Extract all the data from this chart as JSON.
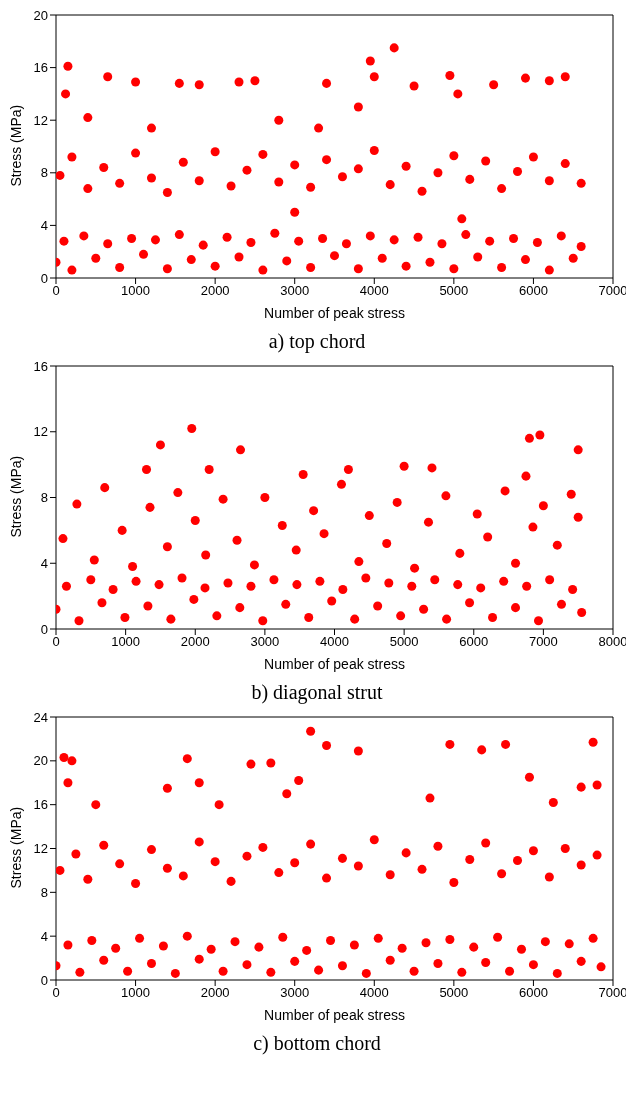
{
  "chart_data": [
    {
      "type": "scatter",
      "title": "a) top chord",
      "xlabel": "Number of peak stress",
      "ylabel": "Stress (MPa)",
      "xlim": [
        0,
        7000
      ],
      "xticks": [
        0,
        1000,
        2000,
        3000,
        4000,
        5000,
        6000,
        7000
      ],
      "ylim": [
        0,
        20
      ],
      "yticks": [
        0,
        4,
        8,
        12,
        16,
        20
      ],
      "marker": "circle",
      "series": [
        {
          "color": "#ff0000",
          "x": [
            0,
            100,
            200,
            350,
            500,
            650,
            800,
            950,
            1100,
            1250,
            1400,
            1550,
            1700,
            1850,
            2000,
            2150,
            2300,
            2450,
            2600,
            2750,
            2900,
            3050,
            3200,
            3350,
            3500,
            3650,
            3800,
            3950,
            4100,
            4250,
            4400,
            4550,
            4700,
            4850,
            5000,
            5150,
            5300,
            5450,
            5600,
            5750,
            5900,
            6050,
            6200,
            6350,
            6500,
            6600,
            50,
            200,
            400,
            600,
            800,
            1000,
            1200,
            1400,
            1600,
            1800,
            2000,
            2200,
            2400,
            2600,
            2800,
            3000,
            3200,
            3400,
            3600,
            3800,
            4000,
            4200,
            4400,
            4600,
            4800,
            5000,
            5200,
            5400,
            5600,
            5800,
            6000,
            6200,
            6400,
            6600,
            120,
            150,
            650,
            1000,
            1550,
            1800,
            2300,
            2500,
            3300,
            3400,
            3800,
            3950,
            4000,
            4250,
            4500,
            4950,
            5050,
            5500,
            5900,
            6200,
            6400,
            1200,
            400,
            2800,
            5100,
            3000
          ],
          "values": [
            1.2,
            2.8,
            0.6,
            3.2,
            1.5,
            2.6,
            0.8,
            3.0,
            1.8,
            2.9,
            0.7,
            3.3,
            1.4,
            2.5,
            0.9,
            3.1,
            1.6,
            2.7,
            0.6,
            3.4,
            1.3,
            2.8,
            0.8,
            3.0,
            1.7,
            2.6,
            0.7,
            3.2,
            1.5,
            2.9,
            0.9,
            3.1,
            1.2,
            2.6,
            0.7,
            3.3,
            1.6,
            2.8,
            0.8,
            3.0,
            1.4,
            2.7,
            0.6,
            3.2,
            1.5,
            2.4,
            7.8,
            9.2,
            6.8,
            8.4,
            7.2,
            9.5,
            7.6,
            6.5,
            8.8,
            7.4,
            9.6,
            7.0,
            8.2,
            9.4,
            7.3,
            8.6,
            6.9,
            9.0,
            7.7,
            8.3,
            9.7,
            7.1,
            8.5,
            6.6,
            8.0,
            9.3,
            7.5,
            8.9,
            6.8,
            8.1,
            9.2,
            7.4,
            8.7,
            7.2,
            14.0,
            16.1,
            15.3,
            14.9,
            14.8,
            14.7,
            14.9,
            15.0,
            11.4,
            14.8,
            13.0,
            16.5,
            15.3,
            17.5,
            14.6,
            15.4,
            14.0,
            14.7,
            15.2,
            15.0,
            15.3,
            11.4,
            12.2,
            12.0,
            4.5,
            5.0
          ]
        }
      ]
    },
    {
      "type": "scatter",
      "title": "b) diagonal strut",
      "xlabel": "Number of peak stress",
      "ylabel": "Stress (MPa)",
      "xlim": [
        0,
        8000
      ],
      "xticks": [
        0,
        1000,
        2000,
        3000,
        4000,
        5000,
        6000,
        7000,
        8000
      ],
      "ylim": [
        0,
        16
      ],
      "yticks": [
        0,
        4,
        8,
        12,
        16
      ],
      "marker": "circle",
      "series": [
        {
          "color": "#ff0000",
          "x": [
            0,
            150,
            330,
            500,
            660,
            820,
            990,
            1150,
            1320,
            1480,
            1650,
            1810,
            1980,
            2140,
            2310,
            2470,
            2640,
            2800,
            2970,
            3130,
            3300,
            3460,
            3630,
            3790,
            3960,
            4120,
            4290,
            4450,
            4620,
            4780,
            4950,
            5110,
            5280,
            5440,
            5610,
            5770,
            5940,
            6100,
            6270,
            6430,
            6600,
            6760,
            6930,
            7090,
            7260,
            7420,
            7550,
            100,
            300,
            550,
            700,
            950,
            1100,
            1350,
            1600,
            1750,
            2000,
            2150,
            2400,
            2600,
            2850,
            3000,
            3250,
            3450,
            3700,
            3850,
            4100,
            4350,
            4500,
            4750,
            4900,
            5150,
            5350,
            5600,
            5800,
            6050,
            6200,
            6450,
            6600,
            6850,
            7000,
            7200,
            7400,
            7500,
            1300,
            1500,
            1950,
            2200,
            2650,
            3550,
            4200,
            5000,
            5400,
            6800,
            6950,
            7500,
            6750
          ],
          "values": [
            1.2,
            2.6,
            0.5,
            3.0,
            1.6,
            2.4,
            0.7,
            2.9,
            1.4,
            2.7,
            0.6,
            3.1,
            1.8,
            2.5,
            0.8,
            2.8,
            1.3,
            2.6,
            0.5,
            3.0,
            1.5,
            2.7,
            0.7,
            2.9,
            1.7,
            2.4,
            0.6,
            3.1,
            1.4,
            2.8,
            0.8,
            2.6,
            1.2,
            3.0,
            0.6,
            2.7,
            1.6,
            2.5,
            0.7,
            2.9,
            1.3,
            2.6,
            0.5,
            3.0,
            1.5,
            2.4,
            1.0,
            5.5,
            7.6,
            4.2,
            8.6,
            6.0,
            3.8,
            7.4,
            5.0,
            8.3,
            6.6,
            4.5,
            7.9,
            5.4,
            3.9,
            8.0,
            6.3,
            4.8,
            7.2,
            5.8,
            8.8,
            4.1,
            6.9,
            5.2,
            7.7,
            3.7,
            6.5,
            8.1,
            4.6,
            7.0,
            5.6,
            8.4,
            4.0,
            6.2,
            7.5,
            5.1,
            8.2,
            6.8,
            9.7,
            11.2,
            12.2,
            9.7,
            10.9,
            9.4,
            9.7,
            9.9,
            9.8,
            11.6,
            11.8,
            10.9,
            9.3
          ]
        }
      ]
    },
    {
      "type": "scatter",
      "title": "c) bottom chord",
      "xlabel": "Number of peak stress",
      "ylabel": "Stress (MPa)",
      "xlim": [
        0,
        7000
      ],
      "xticks": [
        0,
        1000,
        2000,
        3000,
        4000,
        5000,
        6000,
        7000
      ],
      "ylim": [
        0,
        24
      ],
      "yticks": [
        0,
        4,
        8,
        12,
        16,
        20,
        24
      ],
      "marker": "circle",
      "series": [
        {
          "color": "#ff0000",
          "x": [
            0,
            150,
            300,
            450,
            600,
            750,
            900,
            1050,
            1200,
            1350,
            1500,
            1650,
            1800,
            1950,
            2100,
            2250,
            2400,
            2550,
            2700,
            2850,
            3000,
            3150,
            3300,
            3450,
            3600,
            3750,
            3900,
            4050,
            4200,
            4350,
            4500,
            4650,
            4800,
            4950,
            5100,
            5250,
            5400,
            5550,
            5700,
            5850,
            6000,
            6150,
            6300,
            6450,
            6600,
            6750,
            6850,
            50,
            250,
            400,
            600,
            800,
            1000,
            1200,
            1400,
            1600,
            1800,
            2000,
            2200,
            2400,
            2600,
            2800,
            3000,
            3200,
            3400,
            3600,
            3800,
            4000,
            4200,
            4400,
            4600,
            4800,
            5000,
            5200,
            5400,
            5600,
            5800,
            6000,
            6200,
            6400,
            6600,
            6800,
            100,
            150,
            200,
            500,
            1400,
            1650,
            1800,
            2050,
            2450,
            2700,
            2900,
            3050,
            3200,
            3400,
            3800,
            4700,
            4950,
            5350,
            5650,
            5950,
            6250,
            6600,
            6750,
            6800
          ],
          "values": [
            1.3,
            3.2,
            0.7,
            3.6,
            1.8,
            2.9,
            0.8,
            3.8,
            1.5,
            3.1,
            0.6,
            4.0,
            1.9,
            2.8,
            0.8,
            3.5,
            1.4,
            3.0,
            0.7,
            3.9,
            1.7,
            2.7,
            0.9,
            3.6,
            1.3,
            3.2,
            0.6,
            3.8,
            1.8,
            2.9,
            0.8,
            3.4,
            1.5,
            3.7,
            0.7,
            3.0,
            1.6,
            3.9,
            0.8,
            2.8,
            1.4,
            3.5,
            0.6,
            3.3,
            1.7,
            3.8,
            1.2,
            10.0,
            11.5,
            9.2,
            12.3,
            10.6,
            8.8,
            11.9,
            10.2,
            9.5,
            12.6,
            10.8,
            9.0,
            11.3,
            12.1,
            9.8,
            10.7,
            12.4,
            9.3,
            11.1,
            10.4,
            12.8,
            9.6,
            11.6,
            10.1,
            12.2,
            8.9,
            11.0,
            12.5,
            9.7,
            10.9,
            11.8,
            9.4,
            12.0,
            10.5,
            11.4,
            20.3,
            18.0,
            20.0,
            16.0,
            17.5,
            20.2,
            18.0,
            16.0,
            19.7,
            19.8,
            17.0,
            18.2,
            22.7,
            21.4,
            20.9,
            16.6,
            21.5,
            21.0,
            21.5,
            18.5,
            16.2,
            17.6,
            21.7,
            17.8
          ]
        }
      ]
    }
  ]
}
